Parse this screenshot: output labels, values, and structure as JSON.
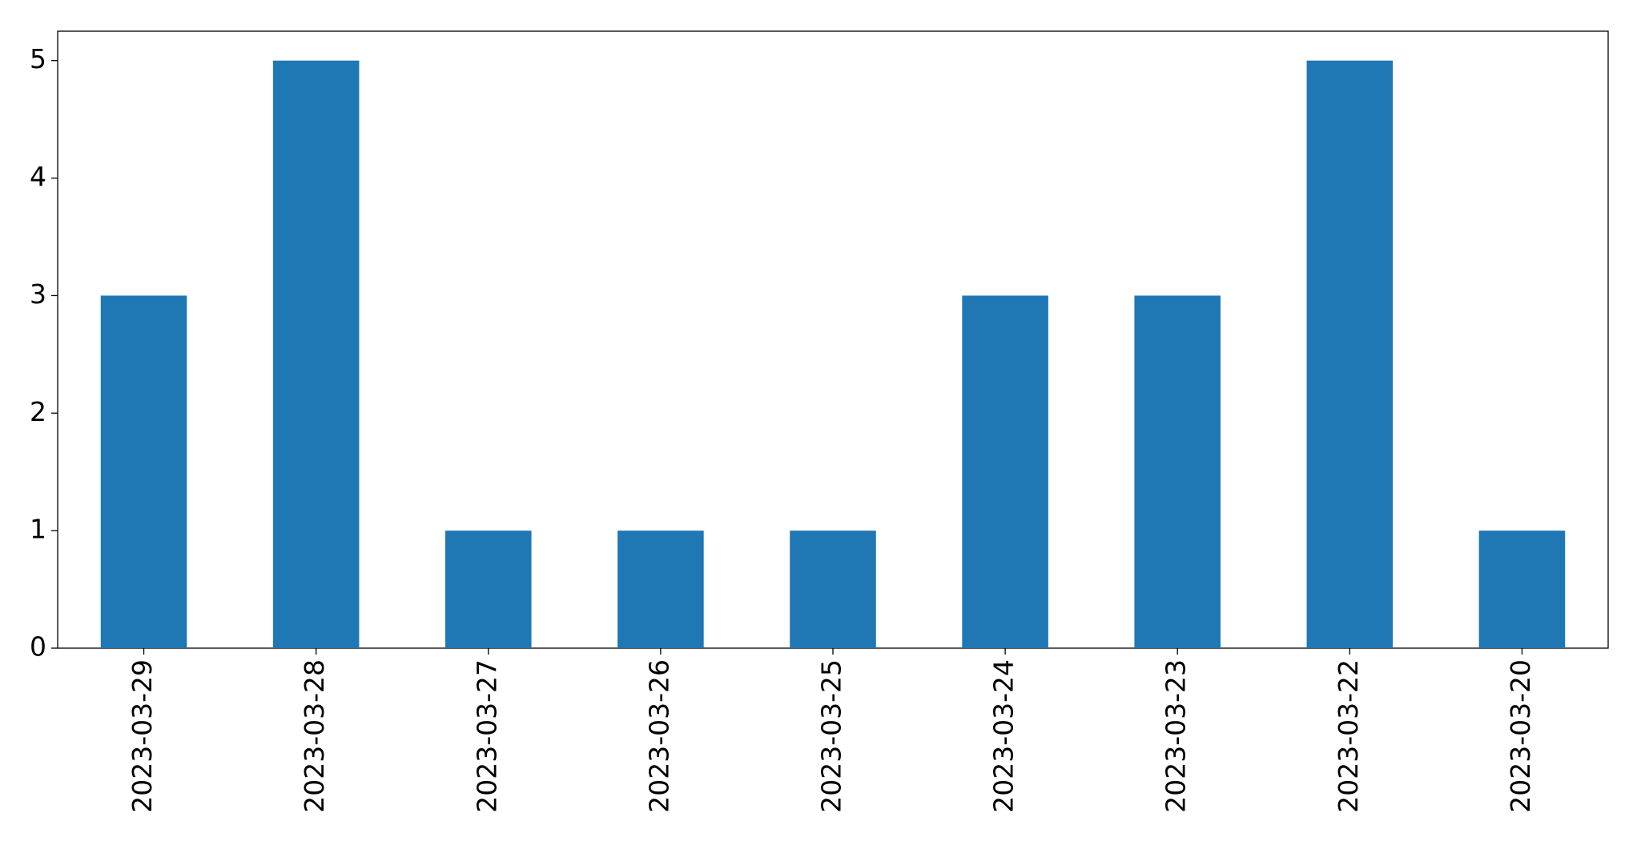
{
  "chart_data": {
    "type": "bar",
    "categories": [
      "2023-03-29",
      "2023-03-28",
      "2023-03-27",
      "2023-03-26",
      "2023-03-25",
      "2023-03-24",
      "2023-03-23",
      "2023-03-22",
      "2023-03-20"
    ],
    "values": [
      3,
      5,
      1,
      1,
      1,
      3,
      3,
      5,
      1
    ],
    "color": "#1f77b4",
    "ylim": [
      0,
      5.25
    ],
    "yticks": [
      0,
      1,
      2,
      3,
      4,
      5
    ],
    "grid": false
  }
}
